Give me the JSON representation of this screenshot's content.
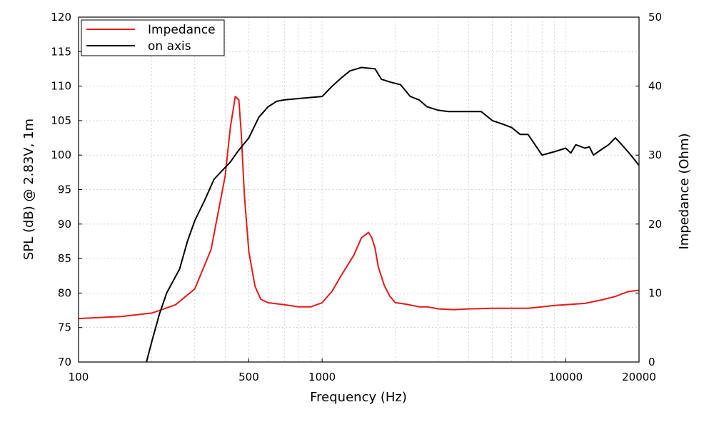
{
  "chart_data": {
    "type": "line",
    "title": "",
    "xlabel": "Frequency (Hz)",
    "ylabel_left": "SPL (dB) @ 2.83V, 1m",
    "ylabel_right": "Impedance (Ohm)",
    "x_scale": "log",
    "xlim": [
      100,
      20000
    ],
    "ylim_left": [
      70,
      120
    ],
    "ylim_right": [
      0,
      50
    ],
    "grid": true,
    "legend_position": "top-left",
    "x_tick_labels": [
      "100",
      "500",
      "1000",
      "10000",
      "20000"
    ],
    "x_tick_values": [
      100,
      500,
      1000,
      10000,
      20000
    ],
    "y_left_tick_labels": [
      "70",
      "75",
      "80",
      "85",
      "90",
      "95",
      "100",
      "105",
      "110",
      "115",
      "120"
    ],
    "y_right_tick_labels": [
      "0",
      "10",
      "20",
      "30",
      "40",
      "50"
    ],
    "series": [
      {
        "name": "Impedance",
        "axis": "right",
        "color": "#e31a1c",
        "x": [
          100,
          150,
          200,
          250,
          300,
          350,
          400,
          420,
          440,
          455,
          465,
          480,
          500,
          530,
          560,
          600,
          700,
          800,
          900,
          1000,
          1100,
          1200,
          1350,
          1450,
          1550,
          1600,
          1650,
          1700,
          1800,
          1900,
          2000,
          2200,
          2500,
          2700,
          3000,
          3500,
          4000,
          5000,
          6000,
          7000,
          8000,
          9000,
          10000,
          12000,
          14000,
          16000,
          18000,
          20000
        ],
        "values": [
          6.3,
          6.6,
          7.1,
          8.3,
          10.6,
          16.3,
          27.0,
          34.0,
          38.5,
          38.0,
          33.5,
          24.0,
          16.0,
          11.0,
          9.1,
          8.6,
          8.3,
          8.0,
          8.0,
          8.6,
          10.3,
          12.6,
          15.5,
          18.0,
          18.8,
          18.0,
          16.5,
          13.8,
          11.1,
          9.5,
          8.6,
          8.4,
          8.0,
          8.0,
          7.7,
          7.6,
          7.7,
          7.8,
          7.8,
          7.8,
          8.0,
          8.2,
          8.3,
          8.5,
          9.0,
          9.5,
          10.2,
          10.4
        ]
      },
      {
        "name": "on axis",
        "axis": "left",
        "color": "#000000",
        "x": [
          190,
          200,
          215,
          230,
          260,
          280,
          300,
          330,
          360,
          390,
          420,
          450,
          500,
          550,
          600,
          650,
          700,
          800,
          1000,
          1100,
          1200,
          1300,
          1450,
          1550,
          1650,
          1750,
          1900,
          2100,
          2300,
          2500,
          2700,
          3000,
          3300,
          3700,
          4000,
          4500,
          5000,
          5500,
          6000,
          6500,
          7000,
          8000,
          9000,
          10000,
          10500,
          11000,
          12000,
          12500,
          13000,
          14000,
          15000,
          16000,
          17000,
          18000,
          19000,
          20000
        ],
        "values": [
          70.0,
          73.0,
          77.0,
          80.0,
          83.5,
          87.5,
          90.5,
          93.5,
          96.5,
          97.8,
          99.0,
          100.5,
          102.5,
          105.5,
          107.0,
          107.8,
          108.0,
          108.2,
          108.5,
          110.0,
          111.2,
          112.2,
          112.7,
          112.6,
          112.5,
          111.0,
          110.6,
          110.2,
          108.5,
          108.0,
          107.0,
          106.5,
          106.3,
          106.3,
          106.3,
          106.3,
          105.0,
          104.5,
          104.0,
          103.0,
          103.0,
          100.0,
          100.5,
          101.0,
          100.3,
          101.5,
          101.0,
          101.2,
          100.0,
          100.8,
          101.5,
          102.5,
          101.5,
          100.5,
          99.5,
          98.5
        ]
      }
    ]
  }
}
